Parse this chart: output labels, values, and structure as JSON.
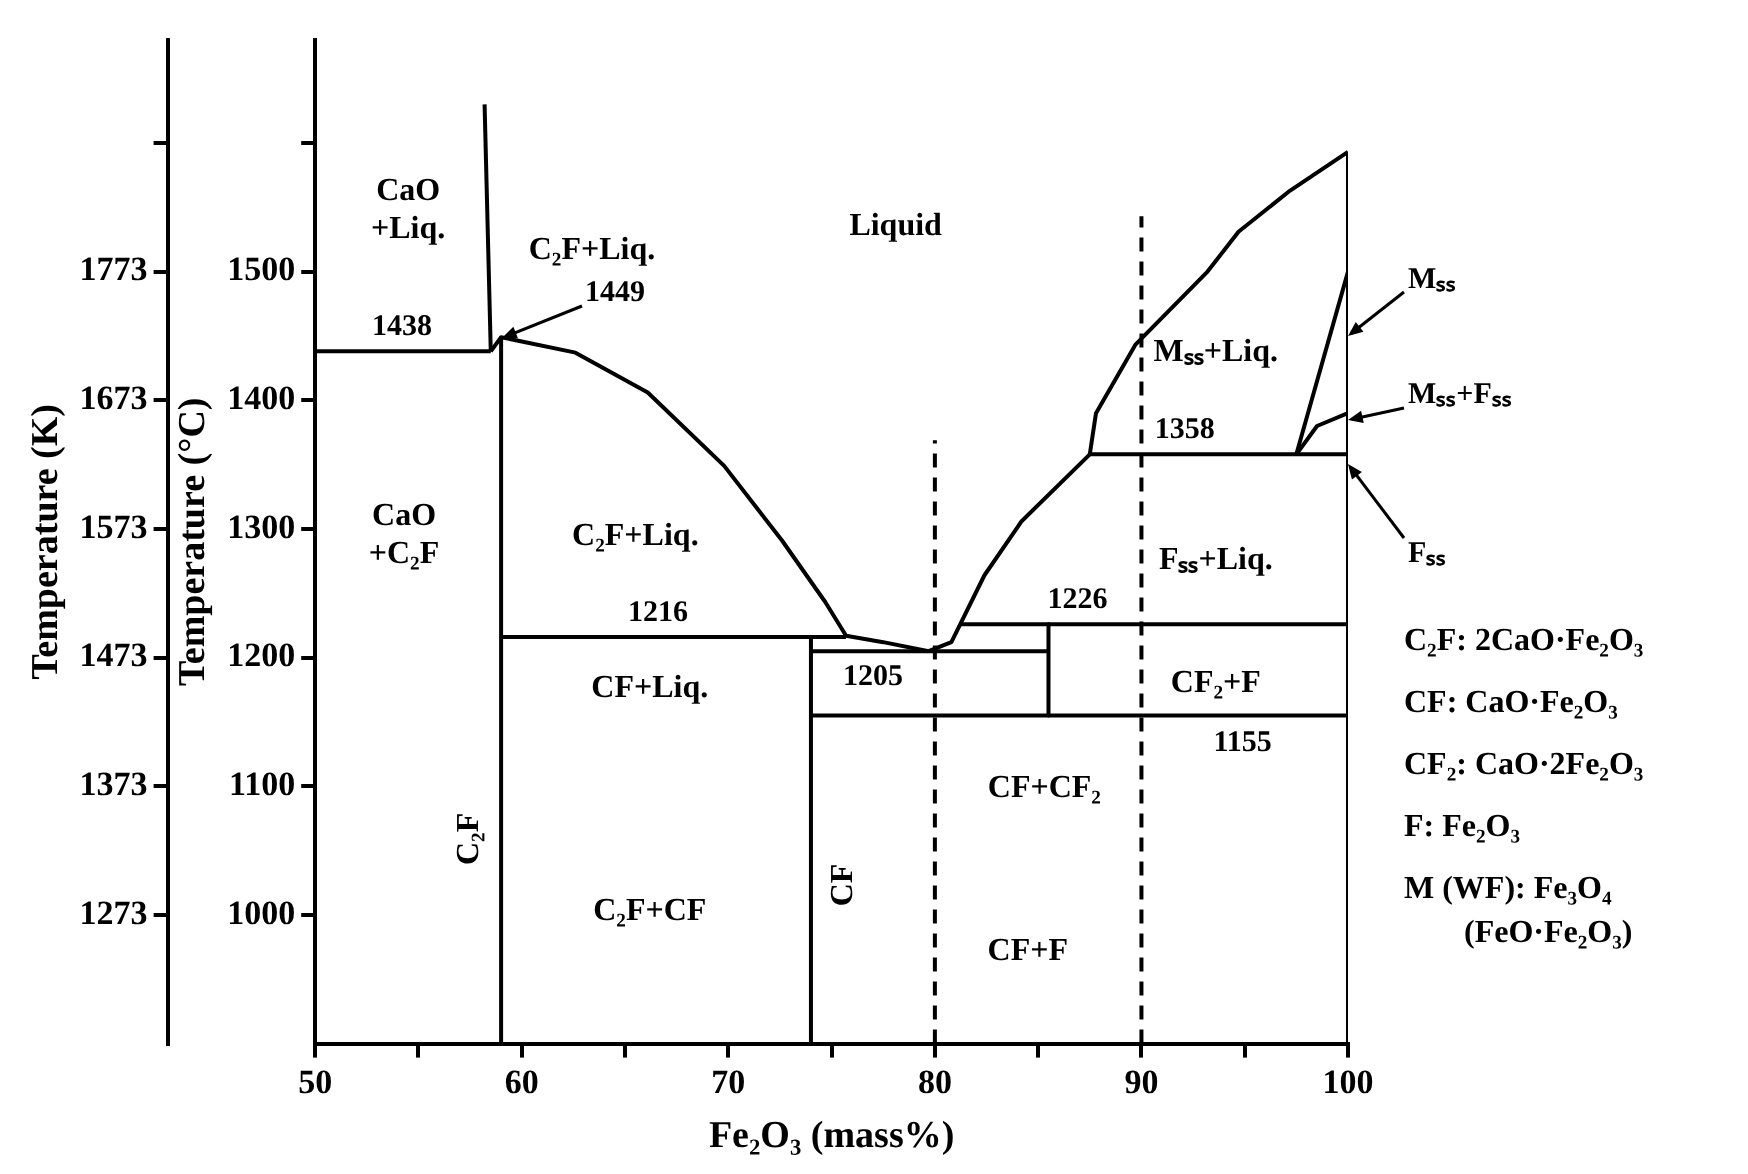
{
  "chart_data": {
    "type": "line",
    "xlabel": "Fe₂O₃ (mass%)",
    "ylabel": "Temperature (°C)",
    "y2label": "Temperature (K)",
    "xlim": [
      50,
      100
    ],
    "xticks": [
      50,
      {
        "value": 55,
        "label": null
      },
      60,
      {
        "value": 65,
        "label": null
      },
      70,
      {
        "value": 75,
        "label": null
      },
      80,
      {
        "value": 85,
        "label": null
      },
      90,
      {
        "value": 95,
        "label": null
      },
      100
    ],
    "ylim": [
      900,
      1680
    ],
    "yticks": [
      1000,
      1100,
      1200,
      1300,
      1400,
      1500,
      {
        "value": 1600,
        "label": null
      }
    ],
    "y2lim": [
      1173,
      1953
    ],
    "y2ticks": [
      1273,
      1373,
      1473,
      1573,
      1673,
      1773,
      {
        "value": 1873,
        "label": null
      }
    ],
    "grid": false,
    "legend": false,
    "marker": "none",
    "series": [
      {
        "color": "#000000",
        "x": [
          58.5,
          58.2
        ],
        "values": [
          1438,
          1630
        ]
      },
      {
        "color": "#000000",
        "x": [
          50,
          58.5
        ],
        "values": [
          1438,
          1438
        ]
      },
      {
        "color": "#000000",
        "x": [
          59,
          59
        ],
        "values": [
          900,
          1449
        ]
      },
      {
        "color": "#000000",
        "x": [
          58.5,
          59,
          62.6,
          66.1,
          69.8,
          72.6,
          74.7,
          75.7,
          77.5,
          79.7
        ],
        "values": [
          1438,
          1449,
          1437,
          1406,
          1349,
          1291,
          1243,
          1217,
          1212,
          1205
        ]
      },
      {
        "color": "#000000",
        "x": [
          59,
          75.7
        ],
        "values": [
          1216,
          1216
        ]
      },
      {
        "color": "#000000",
        "x": [
          74,
          74
        ],
        "values": [
          900,
          1216
        ]
      },
      {
        "color": "#000000",
        "x": [
          74,
          85.5
        ],
        "values": [
          1205,
          1205
        ]
      },
      {
        "color": "#000000",
        "x": [
          85.5,
          85.5
        ],
        "values": [
          1226,
          1155
        ]
      },
      {
        "color": "#000000",
        "x": [
          81.2,
          100
        ],
        "values": [
          1226,
          1226
        ]
      },
      {
        "color": "#000000",
        "x": [
          74,
          100
        ],
        "values": [
          1155,
          1155
        ]
      },
      {
        "color": "#000000",
        "x": [
          79.7,
          80.8,
          82.4,
          84.2,
          87.5
        ],
        "values": [
          1205,
          1212,
          1264,
          1306,
          1358
        ]
      },
      {
        "color": "#000000",
        "x": [
          87.5,
          100
        ],
        "values": [
          1358,
          1358
        ]
      },
      {
        "color": "#000000",
        "x": [
          87.5,
          87.8,
          89.7,
          93.2,
          94.7,
          97.2,
          100
        ],
        "values": [
          1358,
          1390,
          1443,
          1500,
          1531,
          1563,
          1593
        ]
      },
      {
        "color": "#000000",
        "x": [
          97.5,
          100
        ],
        "values": [
          1358,
          1500
        ]
      },
      {
        "color": "#000000",
        "x": [
          97.5,
          98.5,
          100
        ],
        "values": [
          1358,
          1380,
          1390
        ]
      },
      {
        "color": "#000000",
        "x": [
          100,
          100
        ],
        "values": [
          900,
          1593
        ]
      },
      {
        "color": "#000000",
        "x": [
          80,
          80
        ],
        "values": [
          900,
          1369
        ],
        "line_style": "dashed"
      },
      {
        "color": "#000000",
        "x": [
          90,
          90
        ],
        "values": [
          900,
          1543
        ],
        "line_style": "dashed"
      }
    ],
    "annotations": [
      {
        "text": "1438",
        "x": 54.2,
        "y": 1438
      },
      {
        "text": "1449",
        "x": 59,
        "y": 1449
      },
      {
        "text": "1216",
        "x": 66.6,
        "y": 1216
      },
      {
        "text": "1205",
        "x": 77.0,
        "y": 1205
      },
      {
        "text": "1226",
        "x": 86.9,
        "y": 1226
      },
      {
        "text": "1358",
        "x": 92.1,
        "y": 1358
      },
      {
        "text": "1155",
        "x": 94.9,
        "y": 1155
      },
      {
        "text": "Mₛₛ",
        "x": 100,
        "y": 1450
      },
      {
        "text": "Mₛₛ+Fₛₛ",
        "x": 100,
        "y": 1385
      },
      {
        "text": "Fₛₛ",
        "x": 100,
        "y": 1350
      },
      "CaO\n+Liq.",
      "Liquid",
      "C₂F+Liq.",
      "CaO\n+C₂F",
      "C₂F+Liq.",
      "CF+Liq.",
      "CF₂+F",
      "CF+CF₂",
      "C₂F+CF",
      "CF+F",
      "C₂F",
      "CF",
      "Mₛₛ+Liq.",
      "Fₛₛ+Liq.",
      "C₂F: 2CaO·Fe₂O₃",
      "CF: CaO·Fe₂O₃",
      "CF₂: CaO·2Fe₂O₃",
      "F: Fe₂O₃",
      "M (WF): Fe₃O₄\n(FeO·Fe₂O₃)"
    ]
  }
}
